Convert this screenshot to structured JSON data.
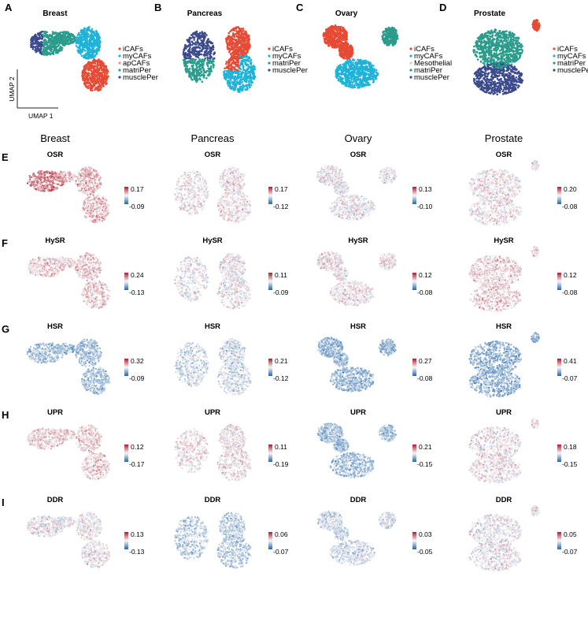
{
  "top_row": {
    "panels": [
      {
        "letter": "A",
        "title": "Breast",
        "legend": [
          {
            "label": "iCAFs",
            "color": "#e64b35"
          },
          {
            "label": "myCAFs",
            "color": "#1fb3d9"
          },
          {
            "label": "apCAFs",
            "color": "#e8a07c"
          },
          {
            "label": "matriPer",
            "color": "#2b9c8c"
          },
          {
            "label": "musclePer",
            "color": "#3b4a8c"
          }
        ]
      },
      {
        "letter": "B",
        "title": "Pancreas",
        "legend": [
          {
            "label": "iCAFs",
            "color": "#e64b35"
          },
          {
            "label": "myCAFs",
            "color": "#1fb3d9"
          },
          {
            "label": "matriPer",
            "color": "#2b9c8c"
          },
          {
            "label": "musclePer",
            "color": "#3b4a8c"
          }
        ]
      },
      {
        "letter": "C",
        "title": "Ovary",
        "legend": [
          {
            "label": "iCAFs",
            "color": "#e64b35"
          },
          {
            "label": "myCAFs",
            "color": "#1fb3d9"
          },
          {
            "label": "Mesothelial",
            "color": "#f2c4b0"
          },
          {
            "label": "matriPer",
            "color": "#2b9c8c"
          },
          {
            "label": "musclePer",
            "color": "#3b4a8c"
          }
        ]
      },
      {
        "letter": "D",
        "title": "Prostate",
        "legend": [
          {
            "label": "iCAFs",
            "color": "#e64b35"
          },
          {
            "label": "myCAFs",
            "color": "#1fb3d9"
          },
          {
            "label": "matriPer",
            "color": "#2b9c8c"
          },
          {
            "label": "musclePer",
            "color": "#3b4a8c"
          }
        ]
      }
    ],
    "axis_x": "UMAP 1",
    "axis_y": "UMAP 2"
  },
  "columns": [
    "Breast",
    "Pancreas",
    "Ovary",
    "Prostate"
  ],
  "rows": [
    {
      "letter": "E",
      "score": "OSR",
      "scales": [
        {
          "max": "0.17",
          "min": "-0.09"
        },
        {
          "max": "0.17",
          "min": "-0.12"
        },
        {
          "max": "0.13",
          "min": "-0.10"
        },
        {
          "max": "0.20",
          "min": "-0.08"
        }
      ]
    },
    {
      "letter": "F",
      "score": "HySR",
      "scales": [
        {
          "max": "0.24",
          "min": "-0.13"
        },
        {
          "max": "0.11",
          "min": "-0.09"
        },
        {
          "max": "0.12",
          "min": "-0.08"
        },
        {
          "max": "0.12",
          "min": "-0.08"
        }
      ]
    },
    {
      "letter": "G",
      "score": "HSR",
      "scales": [
        {
          "max": "0.32",
          "min": "-0.09"
        },
        {
          "max": "0.21",
          "min": "-0.12"
        },
        {
          "max": "0.27",
          "min": "-0.08"
        },
        {
          "max": "0.41",
          "min": "-0.07"
        }
      ]
    },
    {
      "letter": "H",
      "score": "UPR",
      "scales": [
        {
          "max": "0.12",
          "min": "-0.17"
        },
        {
          "max": "0.11",
          "min": "-0.19"
        },
        {
          "max": "0.21",
          "min": "-0.15"
        },
        {
          "max": "0.18",
          "min": "-0.15"
        }
      ]
    },
    {
      "letter": "I",
      "score": "DDR",
      "scales": [
        {
          "max": "0.13",
          "min": "-0.13"
        },
        {
          "max": "0.06",
          "min": "-0.07"
        },
        {
          "max": "0.03",
          "min": "-0.05"
        },
        {
          "max": "0.05",
          "min": "-0.07"
        }
      ]
    }
  ],
  "colors": {
    "scale_high": "#b2182b",
    "scale_mid": "#f7f7f7",
    "scale_low": "#2166ac"
  }
}
